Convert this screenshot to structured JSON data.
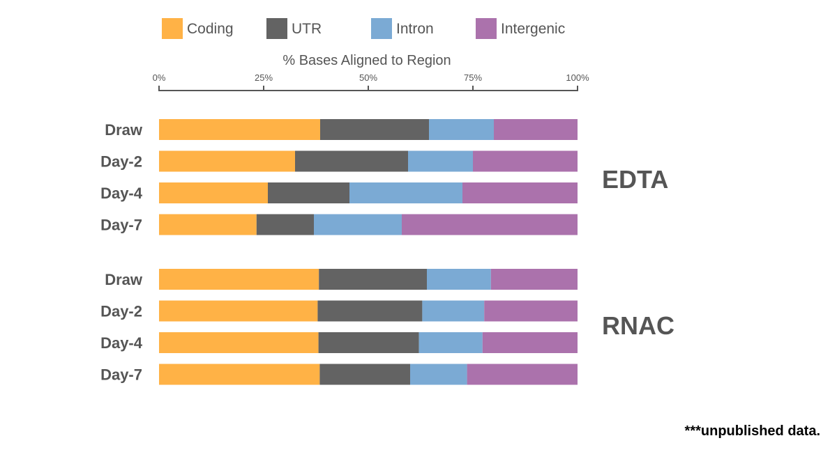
{
  "chart_data": {
    "type": "bar",
    "orientation": "horizontal",
    "stacked": true,
    "xlabel": "% Bases Aligned to Region",
    "xlim": [
      0,
      100
    ],
    "xticks": [
      "0%",
      "25%",
      "50%",
      "75%",
      "100%"
    ],
    "xtick_values": [
      0,
      25,
      50,
      75,
      100
    ],
    "legend_position": "top",
    "series": [
      {
        "name": "Coding",
        "color": "#FFB246"
      },
      {
        "name": "UTR",
        "color": "#636363"
      },
      {
        "name": "Intron",
        "color": "#7BAAD4"
      },
      {
        "name": "Intergenic",
        "color": "#AB72AC"
      }
    ],
    "groups": [
      {
        "name": "EDTA",
        "categories": [
          "Draw",
          "Day-2",
          "Day-4",
          "Day-7"
        ],
        "values": [
          [
            38.5,
            26.0,
            15.5,
            20.0
          ],
          [
            32.5,
            27.0,
            15.5,
            25.0
          ],
          [
            26.0,
            19.5,
            27.0,
            27.5
          ],
          [
            23.3,
            13.7,
            21.0,
            42.0
          ]
        ]
      },
      {
        "name": "RNAC",
        "categories": [
          "Draw",
          "Day-2",
          "Day-4",
          "Day-7"
        ],
        "values": [
          [
            38.2,
            25.8,
            15.3,
            20.7
          ],
          [
            37.9,
            25.0,
            14.8,
            22.3
          ],
          [
            38.1,
            24.0,
            15.2,
            22.7
          ],
          [
            38.4,
            21.6,
            13.6,
            26.4
          ]
        ]
      }
    ]
  },
  "footnote": "***unpublished data."
}
